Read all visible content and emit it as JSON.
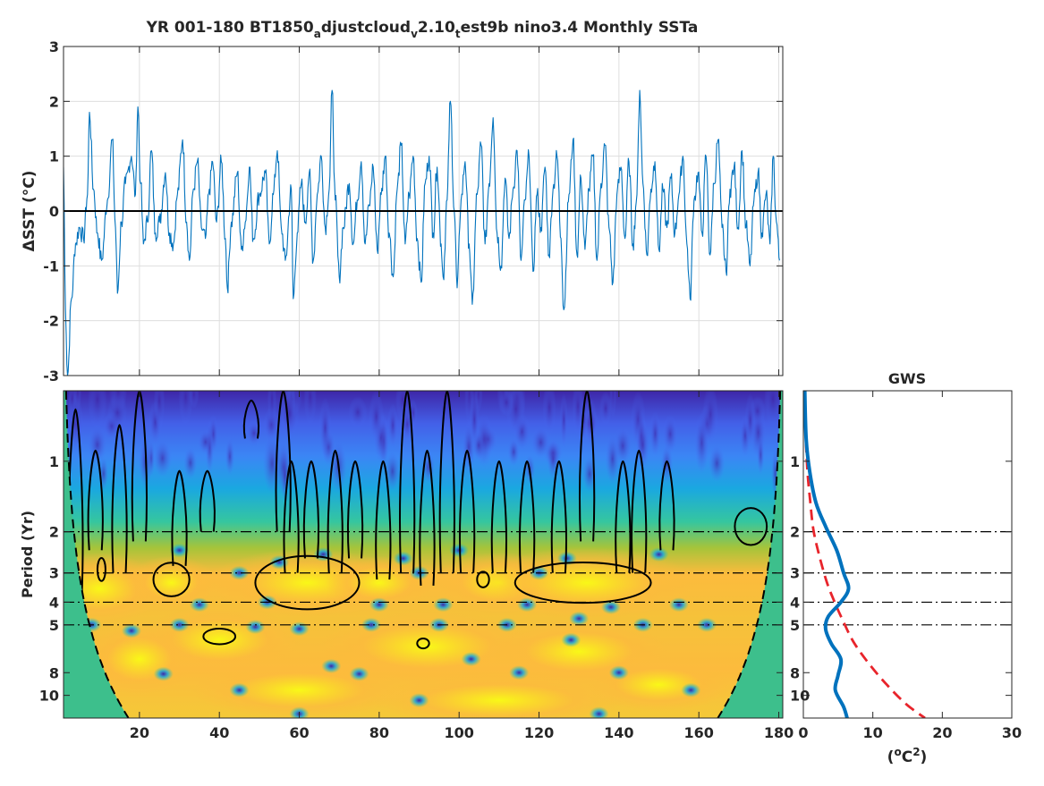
{
  "chart_data": [
    {
      "type": "line",
      "title": {
        "prefix": "YR 001-180 BT1850",
        "sub1": "a",
        "mid": "djustcloud",
        "sub2": "v",
        "mid2": "2.10",
        "sub3": "t",
        "suffix": "est9b nino3.4 Monthly SSTa"
      },
      "ylabel": "ΔSST (°C)",
      "xlim": [
        1,
        181
      ],
      "ylim": [
        -3,
        3
      ],
      "yticks": [
        -3,
        -2,
        -1,
        0,
        1,
        2,
        3
      ],
      "xticks": [
        20,
        40,
        60,
        80,
        100,
        120,
        140,
        160,
        180
      ],
      "grid": true,
      "series_color": "#0072BD",
      "zero_line": 0,
      "keypoints": [
        [
          1,
          0.8
        ],
        [
          1.5,
          -1.8
        ],
        [
          2,
          -3.0
        ],
        [
          3,
          -1.6
        ],
        [
          4,
          -0.6
        ],
        [
          5,
          -0.3
        ],
        [
          6,
          -0.5
        ],
        [
          7,
          0.3
        ],
        [
          7.5,
          1.8
        ],
        [
          8.5,
          0.4
        ],
        [
          9.5,
          -0.4
        ],
        [
          10.5,
          -0.9
        ],
        [
          12,
          0.2
        ],
        [
          13.2,
          1.3
        ],
        [
          14,
          -0.3
        ],
        [
          14.5,
          -1.5
        ],
        [
          15.5,
          -0.2
        ],
        [
          16.5,
          0.5
        ],
        [
          18,
          1.0
        ],
        [
          19,
          0.3
        ],
        [
          19.6,
          1.9
        ],
        [
          20.3,
          0.5
        ],
        [
          21,
          -0.6
        ],
        [
          22,
          -0.2
        ],
        [
          23,
          1.1
        ],
        [
          24,
          -0.4
        ],
        [
          25,
          -0.2
        ],
        [
          26.5,
          0.7
        ],
        [
          27.5,
          -0.4
        ],
        [
          28.5,
          -0.6
        ],
        [
          29.5,
          0.3
        ],
        [
          30.8,
          1.3
        ],
        [
          31.8,
          -0.2
        ],
        [
          32.5,
          -0.9
        ],
        [
          33.5,
          0.4
        ],
        [
          34.5,
          0.9
        ],
        [
          35.5,
          -0.3
        ],
        [
          36.5,
          -0.5
        ],
        [
          37.5,
          0.4
        ],
        [
          38.3,
          0.9
        ],
        [
          39.3,
          -0.2
        ],
        [
          40.5,
          0.9
        ],
        [
          41.5,
          -0.5
        ],
        [
          42,
          -1.4
        ],
        [
          43,
          -0.2
        ],
        [
          44.5,
          0.7
        ],
        [
          45.5,
          -0.7
        ],
        [
          46.5,
          -0.2
        ],
        [
          47.5,
          0.8
        ],
        [
          48.5,
          -0.5
        ],
        [
          50,
          0.3
        ],
        [
          51.5,
          0.7
        ],
        [
          52.5,
          -0.6
        ],
        [
          53.5,
          0.3
        ],
        [
          54.5,
          1.1
        ],
        [
          55.5,
          -0.3
        ],
        [
          56.5,
          -0.9
        ],
        [
          58,
          0.4
        ],
        [
          58.5,
          -1.6
        ],
        [
          59.5,
          -0.4
        ],
        [
          60.5,
          0.5
        ],
        [
          61.5,
          -0.2
        ],
        [
          62.5,
          0.7
        ],
        [
          63.5,
          -0.9
        ],
        [
          64.5,
          0.3
        ],
        [
          65.5,
          1.0
        ],
        [
          66.5,
          -0.3
        ],
        [
          67.5,
          0.4
        ],
        [
          68.2,
          2.2
        ],
        [
          69,
          0.2
        ],
        [
          70,
          -1.2
        ],
        [
          71,
          -0.3
        ],
        [
          72.5,
          0.5
        ],
        [
          73.5,
          -0.6
        ],
        [
          74.5,
          0.2
        ],
        [
          75.5,
          0.9
        ],
        [
          76.5,
          -0.6
        ],
        [
          77.5,
          0.1
        ],
        [
          78.5,
          0.8
        ],
        [
          79.5,
          -0.7
        ],
        [
          80.5,
          0.3
        ],
        [
          81.5,
          1.0
        ],
        [
          82.5,
          -0.4
        ],
        [
          83.5,
          -1.2
        ],
        [
          84.5,
          0.4
        ],
        [
          85.5,
          1.2
        ],
        [
          86.5,
          -0.6
        ],
        [
          87.5,
          0.3
        ],
        [
          88.5,
          1.0
        ],
        [
          89.5,
          -0.5
        ],
        [
          90.5,
          -1.3
        ],
        [
          91.5,
          0.5
        ],
        [
          92.5,
          1.0
        ],
        [
          93.5,
          -0.4
        ],
        [
          94.5,
          0.8
        ],
        [
          95.5,
          -0.6
        ],
        [
          96,
          -1.2
        ],
        [
          97,
          0.2
        ],
        [
          97.8,
          2.0
        ],
        [
          98.8,
          0.0
        ],
        [
          99.5,
          -1.4
        ],
        [
          100.5,
          0.2
        ],
        [
          101.5,
          0.9
        ],
        [
          102.5,
          -0.6
        ],
        [
          103.3,
          -1.7
        ],
        [
          104.5,
          0.3
        ],
        [
          105.5,
          1.2
        ],
        [
          106.5,
          -0.6
        ],
        [
          107.5,
          0.5
        ],
        [
          108.5,
          1.7
        ],
        [
          109.5,
          -0.4
        ],
        [
          110.5,
          -1.0
        ],
        [
          111.5,
          0.6
        ],
        [
          112.5,
          -0.5
        ],
        [
          113.5,
          0.4
        ],
        [
          114.5,
          1.1
        ],
        [
          115.5,
          -0.9
        ],
        [
          116.5,
          0.2
        ],
        [
          117.5,
          1.0
        ],
        [
          118.5,
          -1.1
        ],
        [
          119.5,
          0.3
        ],
        [
          120.5,
          -0.3
        ],
        [
          121.5,
          0.8
        ],
        [
          122.5,
          -0.8
        ],
        [
          123.5,
          0.4
        ],
        [
          124.5,
          1.0
        ],
        [
          125.5,
          -0.5
        ],
        [
          126.2,
          -1.8
        ],
        [
          127.5,
          0.3
        ],
        [
          128.5,
          1.3
        ],
        [
          129.5,
          -0.8
        ],
        [
          130.5,
          0.6
        ],
        [
          131.5,
          -0.7
        ],
        [
          132.5,
          0.4
        ],
        [
          133.5,
          1.0
        ],
        [
          134.5,
          -0.9
        ],
        [
          135.5,
          0.5
        ],
        [
          136.5,
          1.2
        ],
        [
          137.5,
          -0.3
        ],
        [
          138.5,
          -1.3
        ],
        [
          139.5,
          0.3
        ],
        [
          140.5,
          0.8
        ],
        [
          141.5,
          -0.5
        ],
        [
          142.5,
          0.9
        ],
        [
          143.5,
          -0.6
        ],
        [
          144.5,
          0.3
        ],
        [
          145.2,
          2.2
        ],
        [
          146,
          0.5
        ],
        [
          147,
          -0.8
        ],
        [
          148,
          0.4
        ],
        [
          149,
          0.9
        ],
        [
          150,
          -0.7
        ],
        [
          151,
          0.4
        ],
        [
          152,
          -0.3
        ],
        [
          153,
          0.6
        ],
        [
          154,
          -0.4
        ],
        [
          155,
          0.3
        ],
        [
          156,
          1.0
        ],
        [
          157,
          -0.6
        ],
        [
          157.8,
          -1.6
        ],
        [
          158.8,
          0.2
        ],
        [
          159.8,
          0.7
        ],
        [
          160.8,
          -0.4
        ],
        [
          161.8,
          1.0
        ],
        [
          162.8,
          -0.8
        ],
        [
          163.8,
          0.5
        ],
        [
          164.8,
          1.3
        ],
        [
          165.8,
          -0.3
        ],
        [
          166.8,
          -1.1
        ],
        [
          167.8,
          0.4
        ],
        [
          168.8,
          0.8
        ],
        [
          169.8,
          -0.3
        ],
        [
          170.8,
          1.1
        ],
        [
          171.8,
          -0.3
        ],
        [
          172.8,
          -1.0
        ],
        [
          173.8,
          0.2
        ],
        [
          174.8,
          0.7
        ],
        [
          175.8,
          -0.4
        ],
        [
          176.8,
          0.3
        ],
        [
          177.8,
          -0.6
        ],
        [
          178.6,
          1.0
        ],
        [
          179.4,
          -0.2
        ],
        [
          180.2,
          -0.9
        ]
      ]
    },
    {
      "type": "heatmap",
      "ylabel": "Period (Yr)",
      "xlim": [
        1,
        181
      ],
      "xticks": [
        20,
        40,
        60,
        80,
        100,
        120,
        140,
        160,
        180
      ],
      "yscale": "log",
      "ylim": [
        0.5,
        12.5
      ],
      "yticks": [
        1,
        2,
        3,
        4,
        5,
        8,
        10
      ],
      "ytick_labels": [
        "1",
        "2",
        "3",
        "4",
        "5",
        "8",
        "10"
      ],
      "reference_periods": [
        2,
        3,
        4,
        5
      ],
      "colormap": [
        "#3e26a8",
        "#4772fa",
        "#1aa8e0",
        "#35c69f",
        "#a6c43a",
        "#fcbb3d",
        "#f5d72a",
        "#f9fb15"
      ],
      "cone_color": "#3dbf8c",
      "significance_regions": [
        {
          "x": 10.5,
          "p": 2.9,
          "rx": 1.0,
          "rp": 1.12
        },
        {
          "x": 28,
          "p": 3.2,
          "rx": 4.5,
          "rp": 1.18
        },
        {
          "x": 40,
          "p": 5.6,
          "rx": 4.0,
          "rp": 1.08
        },
        {
          "x": 62,
          "p": 3.3,
          "rx": 13,
          "rp": 1.3
        },
        {
          "x": 91,
          "p": 6.0,
          "rx": 1.5,
          "rp": 1.05
        },
        {
          "x": 106,
          "p": 3.2,
          "rx": 1.5,
          "rp": 1.08
        },
        {
          "x": 131,
          "p": 3.3,
          "rx": 17,
          "rp": 1.22
        },
        {
          "x": 173,
          "p": 1.9,
          "rx": 4.0,
          "rp": 1.2
        }
      ],
      "significance_strands": [
        {
          "x": 4,
          "p1": 0.6,
          "p2": 3.8
        },
        {
          "x": 9,
          "p1": 0.9,
          "p2": 2.4
        },
        {
          "x": 15,
          "p1": 0.7,
          "p2": 3.0
        },
        {
          "x": 20,
          "p1": 0.5,
          "p2": 2.2
        },
        {
          "x": 30,
          "p1": 1.1,
          "p2": 2.8
        },
        {
          "x": 37,
          "p1": 1.1,
          "p2": 2.0
        },
        {
          "x": 48,
          "p1": 0.55,
          "p2": 0.8
        },
        {
          "x": 56,
          "p1": 0.5,
          "p2": 2.0
        },
        {
          "x": 58,
          "p1": 1.0,
          "p2": 3.0
        },
        {
          "x": 63,
          "p1": 1.0,
          "p2": 2.6
        },
        {
          "x": 69,
          "p1": 0.9,
          "p2": 3.0
        },
        {
          "x": 74,
          "p1": 1.0,
          "p2": 2.6
        },
        {
          "x": 81,
          "p1": 1.0,
          "p2": 3.2
        },
        {
          "x": 87,
          "p1": 0.5,
          "p2": 3.0
        },
        {
          "x": 92,
          "p1": 0.9,
          "p2": 3.4
        },
        {
          "x": 97,
          "p1": 0.5,
          "p2": 3.0
        },
        {
          "x": 102,
          "p1": 0.9,
          "p2": 3.0
        },
        {
          "x": 110,
          "p1": 1.0,
          "p2": 3.0
        },
        {
          "x": 117,
          "p1": 1.0,
          "p2": 3.0
        },
        {
          "x": 125,
          "p1": 1.0,
          "p2": 3.0
        },
        {
          "x": 132,
          "p1": 0.5,
          "p2": 2.2
        },
        {
          "x": 141,
          "p1": 1.0,
          "p2": 3.0
        },
        {
          "x": 145,
          "p1": 0.9,
          "p2": 3.0
        },
        {
          "x": 152,
          "p1": 1.0,
          "p2": 2.4
        }
      ]
    },
    {
      "type": "line",
      "title": "GWS",
      "xlabel": "(°C²)",
      "xlabel_base": "(",
      "xlabel_unit": "o",
      "xlabel_mid": "C",
      "xlabel_sup": "2",
      "xlabel_end": ")",
      "xlim": [
        0,
        30
      ],
      "xticks": [
        0,
        10,
        20,
        30
      ],
      "yscale": "log",
      "ylim": [
        0.5,
        12.5
      ],
      "yticks": [
        1,
        2,
        3,
        4,
        5,
        8,
        10
      ],
      "series": [
        {
          "name": "",
          "color": "#0072BD",
          "points": [
            [
              0.2,
              0.5
            ],
            [
              0.4,
              0.8
            ],
            [
              0.9,
              1.1
            ],
            [
              1.8,
              1.5
            ],
            [
              3.2,
              1.9
            ],
            [
              4.8,
              2.4
            ],
            [
              5.8,
              3.0
            ],
            [
              6.5,
              3.5
            ],
            [
              5.4,
              4.0
            ],
            [
              3.6,
              4.6
            ],
            [
              3.2,
              5.2
            ],
            [
              4.0,
              6.0
            ],
            [
              5.4,
              7.0
            ],
            [
              5.0,
              8.2
            ],
            [
              4.6,
              9.5
            ],
            [
              5.8,
              11.2
            ],
            [
              6.3,
              12.5
            ]
          ]
        },
        {
          "name": "",
          "color": "#e8242b",
          "dashed": true,
          "points": [
            [
              0.1,
              0.5
            ],
            [
              0.5,
              1.0
            ],
            [
              1.0,
              1.5
            ],
            [
              1.5,
              2.0
            ],
            [
              2.4,
              2.6
            ],
            [
              3.4,
              3.3
            ],
            [
              4.5,
              4.0
            ],
            [
              5.7,
              4.8
            ],
            [
              7.2,
              5.9
            ],
            [
              9.4,
              7.3
            ],
            [
              12.0,
              9.0
            ],
            [
              14.8,
              10.9
            ],
            [
              17.5,
              12.5
            ]
          ]
        }
      ],
      "reference_periods": [
        2,
        3,
        4,
        5
      ]
    }
  ]
}
